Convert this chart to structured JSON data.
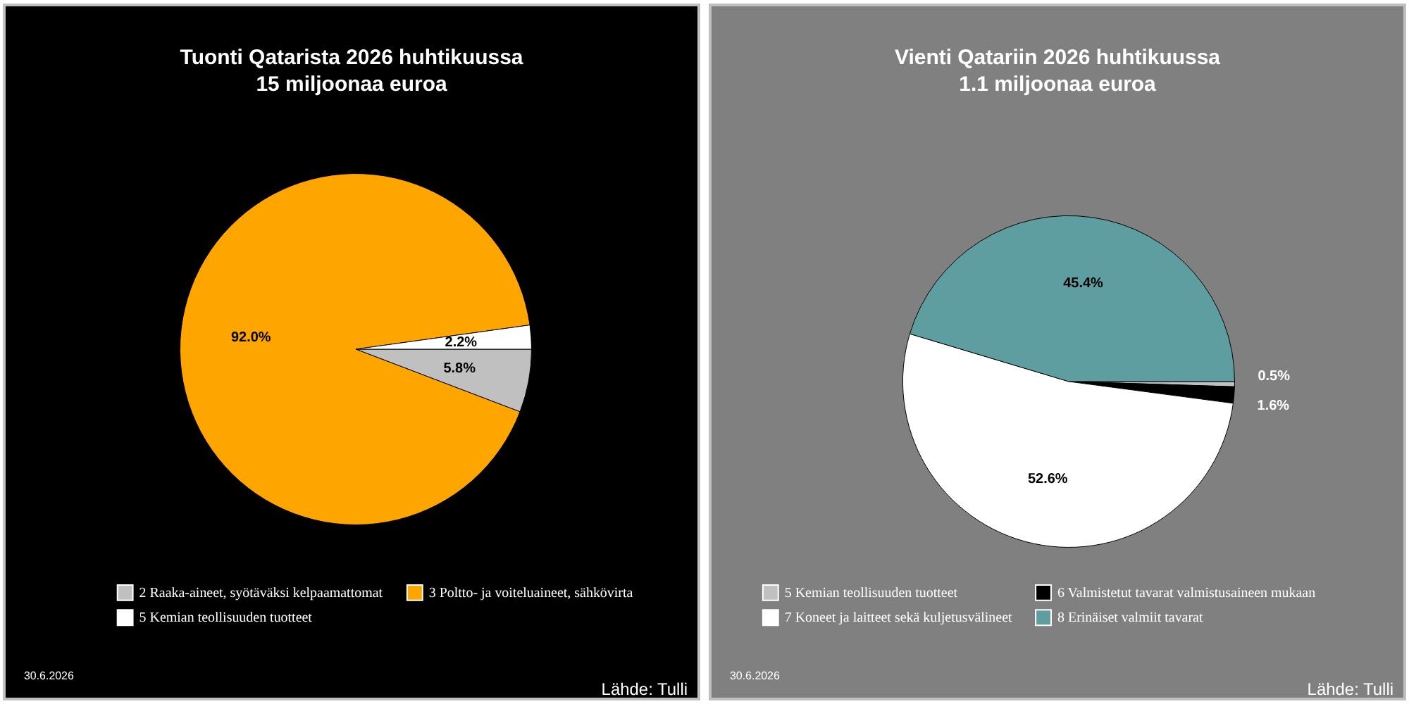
{
  "chart_data": [
    {
      "type": "pie",
      "title": "Tuonti Qatarista  2026 huhtikuussa",
      "subtitle": "15 miljoonaa euroa",
      "categories": [
        "2 Raaka-aineet, syötäväksi kelpaamattomat",
        "3 Poltto- ja voiteluaineet, sähkövirta",
        "5 Kemian teollisuuden tuotteet"
      ],
      "values": [
        5.8,
        92.0,
        2.2
      ],
      "colors": [
        "#c0c0c0",
        "#ffa500",
        "#ffffff"
      ],
      "value_labels": [
        "5.8%",
        "92.0%",
        "2.2%"
      ],
      "legend": "bottom",
      "annotations": [
        "30.6.2026",
        "Lähde: Tulli"
      ]
    },
    {
      "type": "pie",
      "title": "Vienti Qatariin 2026 huhtikuussa",
      "subtitle": "1.1 miljoonaa euroa",
      "categories": [
        "5 Kemian teollisuuden tuotteet",
        "6 Valmistetut tavarat valmistusaineen mukaan",
        "7 Koneet ja laitteet sekä kuljetusvälineet",
        "8 Erinäiset valmiit tavarat"
      ],
      "values": [
        0.5,
        1.6,
        52.6,
        45.4
      ],
      "colors": [
        "#c0c0c0",
        "#000000",
        "#ffffff",
        "#5f9ea0"
      ],
      "value_labels": [
        "0.5%",
        "1.6%",
        "52.6%",
        "45.4%"
      ],
      "legend": "bottom",
      "annotations": [
        "30.6.2026",
        "Lähde: Tulli"
      ]
    }
  ]
}
